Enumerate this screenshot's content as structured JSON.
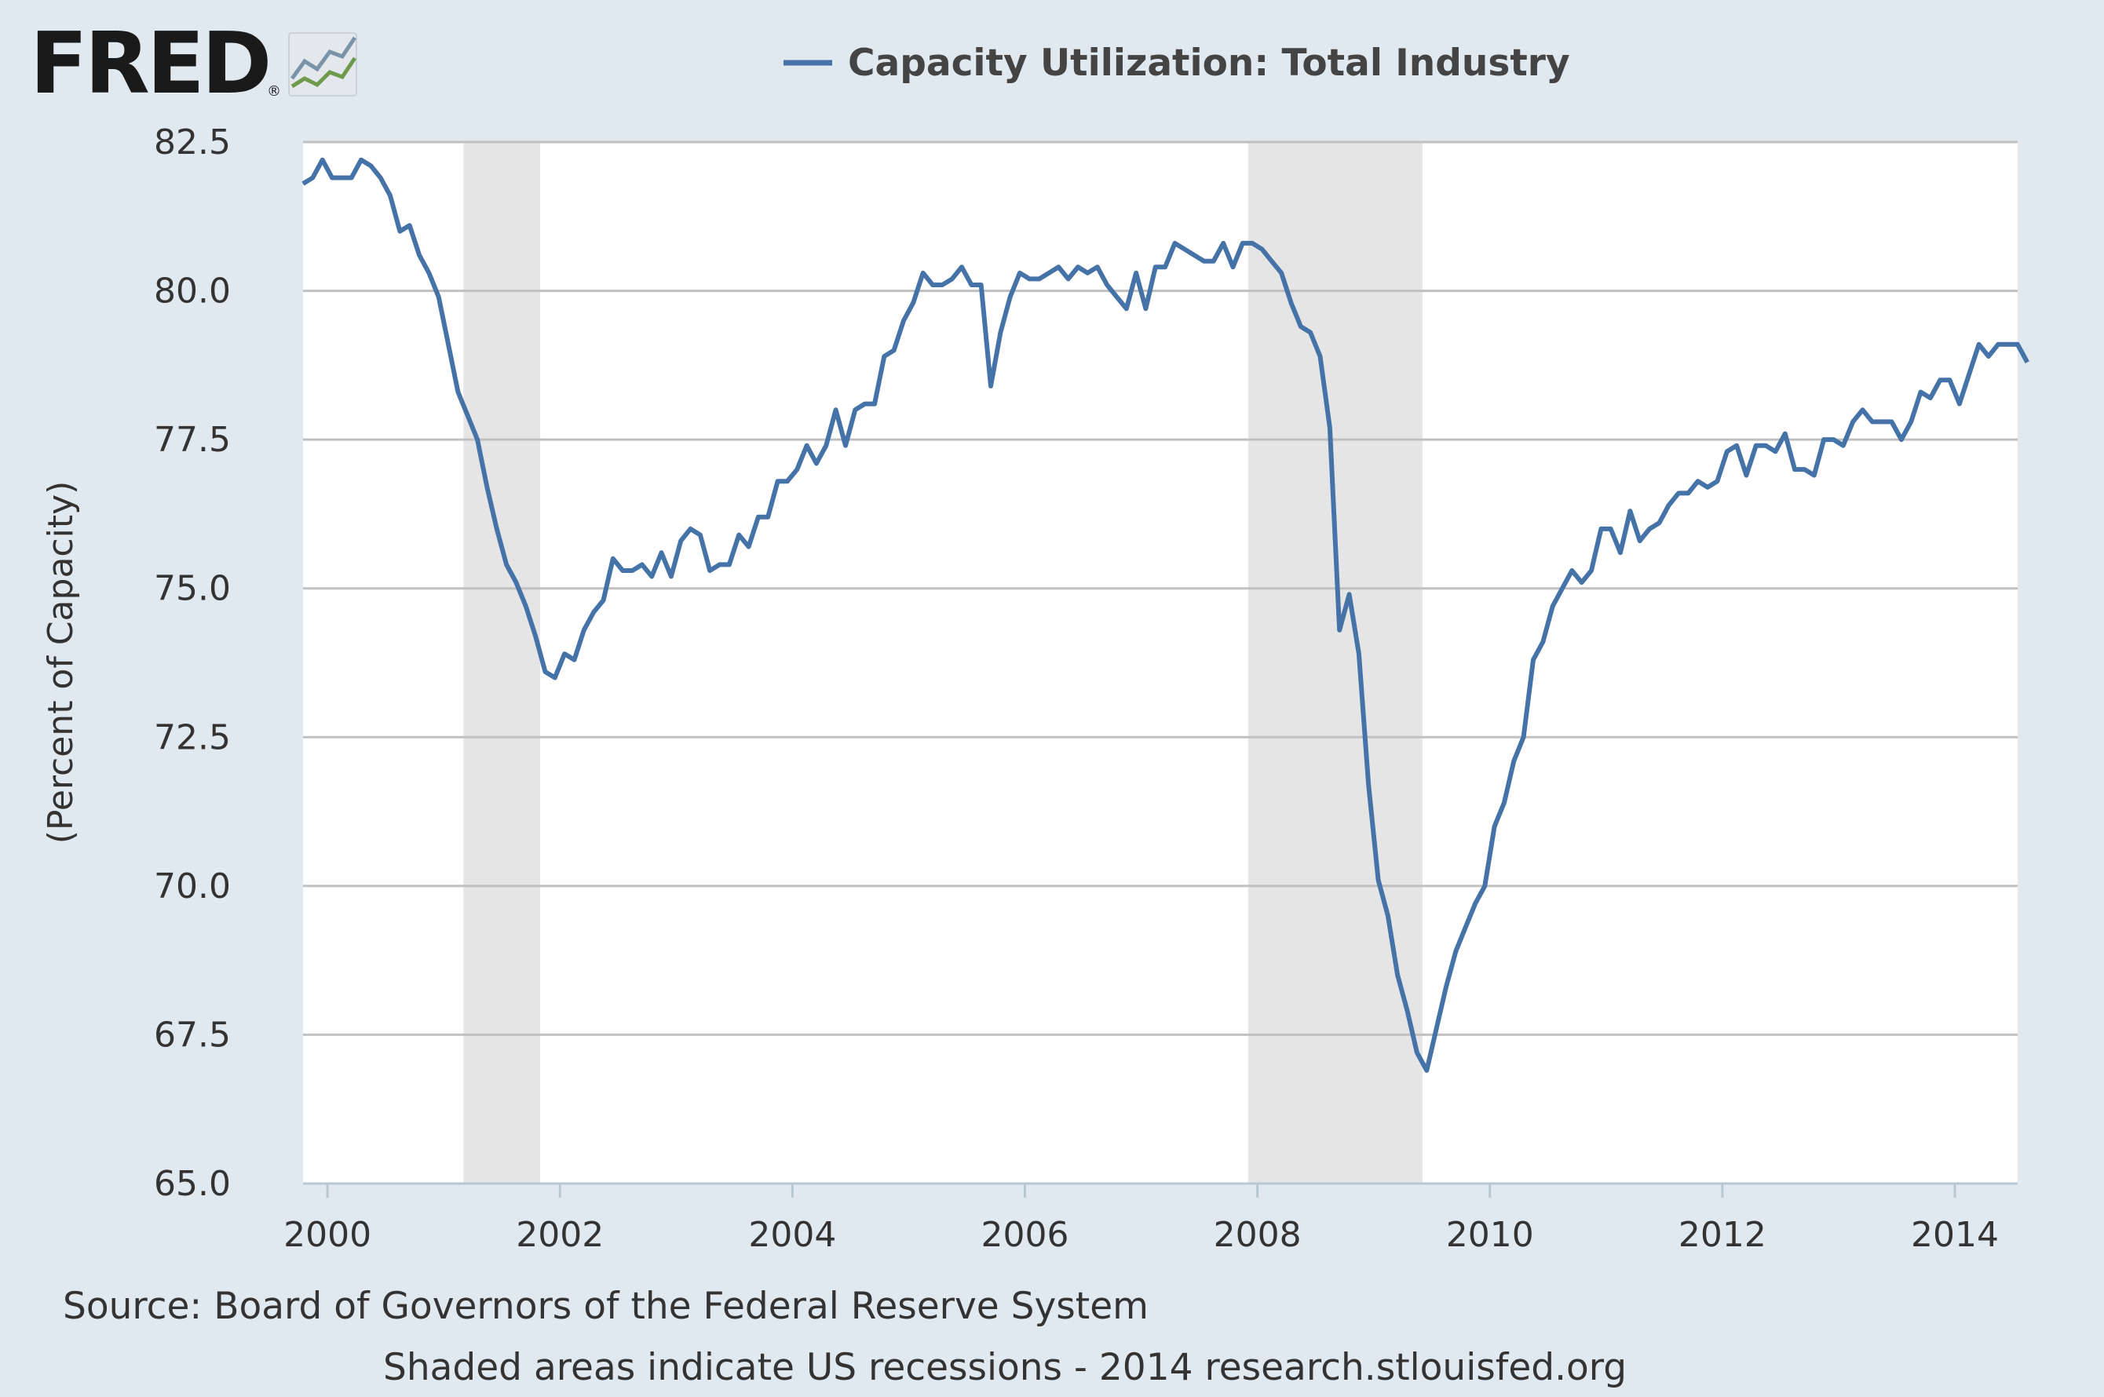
{
  "logo": {
    "text": "FRED",
    "registered": "®",
    "icon": "mini-line-chart-icon"
  },
  "colors": {
    "series": "#4572a7",
    "recession": "#e5e5e5",
    "grid": "#c0c0c0",
    "background": "#e1e9f0",
    "plot_bg": "#ffffff"
  },
  "chart_data": {
    "type": "line",
    "title": "Capacity Utilization: Total Industry",
    "xlabel": "",
    "ylabel": "(Percent of Capacity)",
    "xlim": [
      1999.79,
      2014.54
    ],
    "ylim": [
      65.0,
      82.5
    ],
    "yticks": [
      65.0,
      67.5,
      70.0,
      72.5,
      75.0,
      77.5,
      80.0,
      82.5
    ],
    "ytick_labels": [
      "65.0",
      "67.5",
      "70.0",
      "72.5",
      "75.0",
      "77.5",
      "80.0",
      "82.5"
    ],
    "xticks": [
      2000,
      2002,
      2004,
      2006,
      2008,
      2010,
      2012,
      2014
    ],
    "xtick_labels": [
      "2000",
      "2002",
      "2004",
      "2006",
      "2008",
      "2010",
      "2012",
      "2014"
    ],
    "grid": "horizontal",
    "recessions": [
      {
        "start": 2001.17,
        "end": 2001.83
      },
      {
        "start": 2007.92,
        "end": 2009.42
      }
    ],
    "series": [
      {
        "name": "Capacity Utilization: Total Industry",
        "start": 1999.79,
        "step": 0.08333,
        "values": [
          81.8,
          81.9,
          82.2,
          81.9,
          81.9,
          81.9,
          82.2,
          82.1,
          81.9,
          81.6,
          81.0,
          81.1,
          80.6,
          80.3,
          79.9,
          79.1,
          78.3,
          77.9,
          77.5,
          76.7,
          76.0,
          75.4,
          75.1,
          74.7,
          74.2,
          73.6,
          73.5,
          73.9,
          73.8,
          74.3,
          74.6,
          74.8,
          75.5,
          75.3,
          75.3,
          75.4,
          75.2,
          75.6,
          75.2,
          75.8,
          76.0,
          75.9,
          75.3,
          75.4,
          75.4,
          75.9,
          75.7,
          76.2,
          76.2,
          76.8,
          76.8,
          77.0,
          77.4,
          77.1,
          77.4,
          78.0,
          77.4,
          78.0,
          78.1,
          78.1,
          78.9,
          79.0,
          79.5,
          79.8,
          80.3,
          80.1,
          80.1,
          80.2,
          80.4,
          80.1,
          80.1,
          78.4,
          79.3,
          79.9,
          80.3,
          80.2,
          80.2,
          80.3,
          80.4,
          80.2,
          80.4,
          80.3,
          80.4,
          80.1,
          79.9,
          79.7,
          80.3,
          79.7,
          80.4,
          80.4,
          80.8,
          80.7,
          80.6,
          80.5,
          80.5,
          80.8,
          80.4,
          80.8,
          80.8,
          80.7,
          80.5,
          80.3,
          79.8,
          79.4,
          79.3,
          78.9,
          77.7,
          74.3,
          74.9,
          73.9,
          71.7,
          70.1,
          69.5,
          68.5,
          67.9,
          67.2,
          66.9,
          67.6,
          68.3,
          68.9,
          69.3,
          69.7,
          70.0,
          71.0,
          71.4,
          72.1,
          72.5,
          73.8,
          74.1,
          74.7,
          75.0,
          75.3,
          75.1,
          75.3,
          76.0,
          76.0,
          75.6,
          76.3,
          75.8,
          76.0,
          76.1,
          76.4,
          76.6,
          76.6,
          76.8,
          76.7,
          76.8,
          77.3,
          77.4,
          76.9,
          77.4,
          77.4,
          77.3,
          77.6,
          77.0,
          77.0,
          76.9,
          77.5,
          77.5,
          77.4,
          77.8,
          78.0,
          77.8,
          77.8,
          77.8,
          77.5,
          77.8,
          78.3,
          78.2,
          78.5,
          78.5,
          78.1,
          78.6,
          79.1,
          78.9,
          79.1,
          79.1,
          79.1,
          78.8
        ]
      }
    ]
  },
  "footer": {
    "source": "Source: Board of Governors of the Federal Reserve System",
    "note": "Shaded areas indicate US recessions - 2014 research.stlouisfed.org"
  }
}
